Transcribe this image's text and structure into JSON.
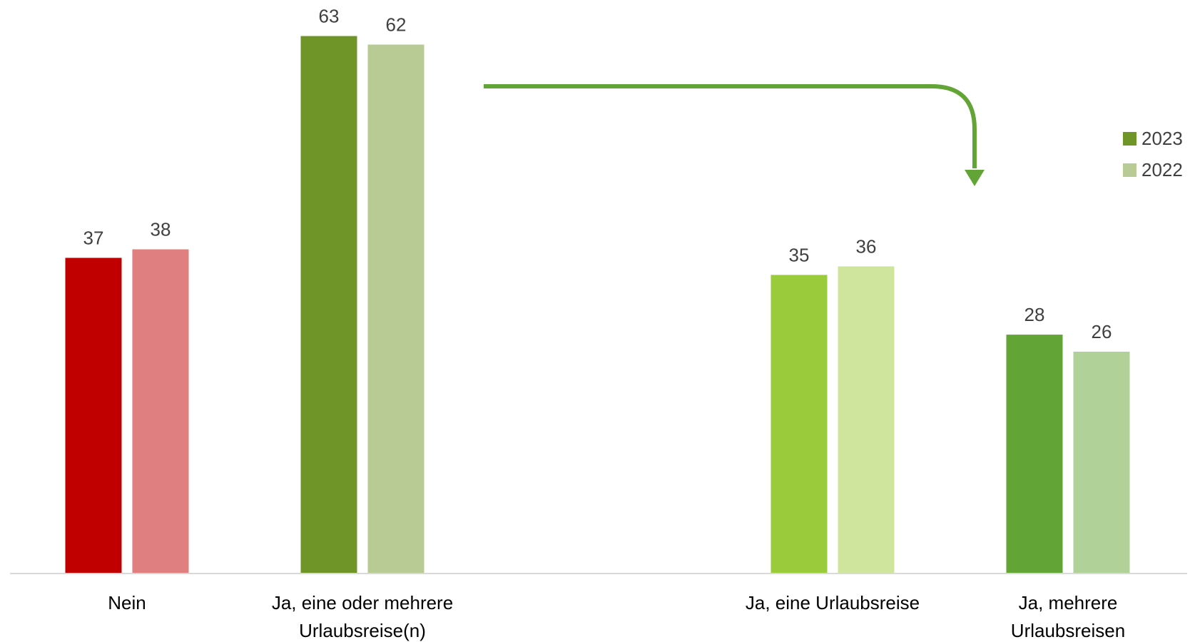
{
  "chart_data": {
    "type": "bar",
    "categories": [
      [
        "Nein"
      ],
      [
        "Ja, eine oder mehrere",
        "Urlaubsreise(n)"
      ],
      [
        "Ja, eine Urlaubsreise"
      ],
      [
        "Ja, mehrere",
        "Urlaubsreisen"
      ]
    ],
    "series": [
      {
        "name": "2023",
        "values": [
          37,
          63,
          35,
          28
        ],
        "colors": [
          "#c00000",
          "#6f9427",
          "#9acb3a",
          "#62a536"
        ]
      },
      {
        "name": "2022",
        "values": [
          38,
          62,
          36,
          26
        ],
        "colors": [
          "#df7f7f",
          "#b9cb95",
          "#cfe49c",
          "#b0d198"
        ]
      }
    ],
    "legend": {
      "position": "right",
      "entries": [
        {
          "label": "2023",
          "color": "#6f9427"
        },
        {
          "label": "2022",
          "color": "#b9cb95"
        }
      ]
    },
    "annotation": {
      "type": "arrow",
      "from": "Ja, eine oder mehrere Urlaubsreise(n)",
      "to": "Ja, mehrere Urlaubsreisen",
      "color": "#62a536"
    },
    "ylim": [
      0,
      65
    ],
    "grid": false,
    "axis_color": "#d9d9d9",
    "title": "",
    "xlabel": "",
    "ylabel": ""
  }
}
